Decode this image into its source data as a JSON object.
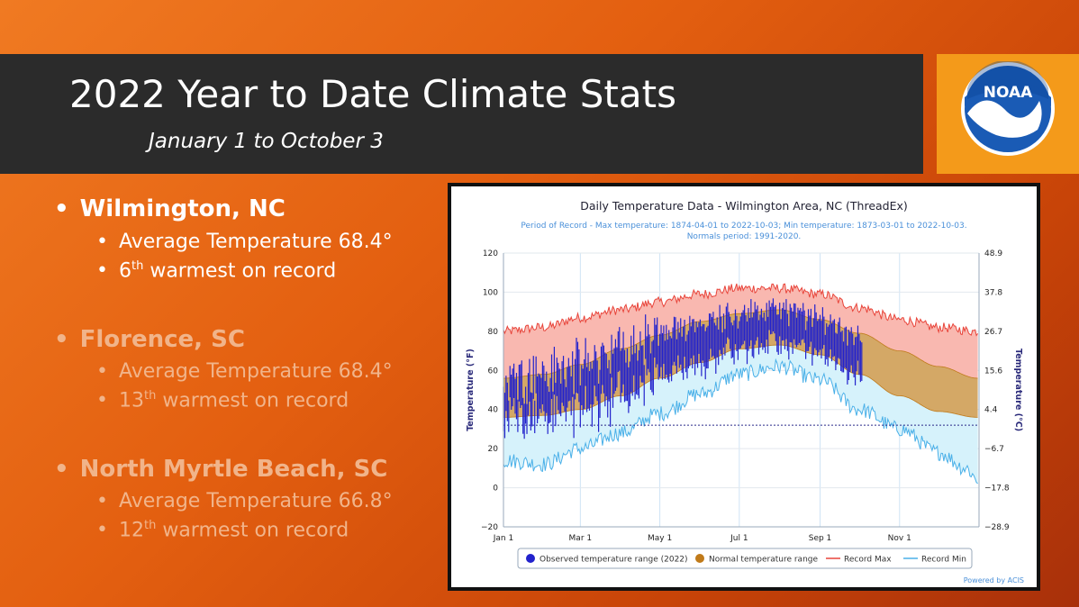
{
  "title": "2022 Year to Date Climate Stats",
  "subtitle": "January 1 to October 3",
  "logo_text": "NOAA",
  "cities": [
    {
      "name": "Wilmington, NC",
      "highlight": true,
      "avg_label": "Average Temperature 68.4°",
      "rank_num": "6",
      "rank_sup": "th",
      "rank_text": " warmest on record"
    },
    {
      "name": "Florence, SC",
      "highlight": false,
      "avg_label": "Average Temperature 68.4°",
      "rank_num": "13",
      "rank_sup": "th",
      "rank_text": " warmest on record"
    },
    {
      "name": "North Myrtle Beach, SC",
      "highlight": false,
      "avg_label": "Average Temperature 66.8°",
      "rank_num": "12",
      "rank_sup": "th",
      "rank_text": " warmest on record"
    }
  ],
  "chart_data": {
    "type": "area",
    "title": "Daily Temperature Data - Wilmington Area, NC (ThreadEx)",
    "subtitle_line1": "Period of Record - Max temperature: 1874-04-01 to 2022-10-03; Min temperature: 1873-03-01 to 2022-10-03.",
    "subtitle_line2": "Normals period: 1991-2020.",
    "ylabel_left": "Temperature (°F)",
    "ylabel_right": "Temperature (°C)",
    "ylim": [
      -20,
      120
    ],
    "yticks_left": [
      "120",
      "100",
      "80",
      "60",
      "40",
      "20",
      "0",
      "−20"
    ],
    "yticks_right": [
      "48.9",
      "37.8",
      "26.7",
      "15.6",
      "4.4",
      "−6.7",
      "−17.8",
      "−28.9"
    ],
    "xticks": [
      "Jan 1",
      "Mar 1",
      "May 1",
      "Jul 1",
      "Sep 1",
      "Nov 1"
    ],
    "xtick_days": [
      0,
      59,
      120,
      181,
      243,
      304
    ],
    "freezing_line_f": 32,
    "legend": [
      "Observed temperature range (2022)",
      "Normal temperature range",
      "Record Max",
      "Record Min"
    ],
    "credit": "Powered by ACIS",
    "colors": {
      "observed": "#2222cc",
      "normal_fill": "#d4a866",
      "normal_line": "#c07a1a",
      "record_max": "#e8443a",
      "record_min": "#4ab0e8",
      "max_fill": "#f9b8b0",
      "min_fill": "#d6f2fb"
    },
    "normal_max_anchors": [
      [
        0,
        56
      ],
      [
        31,
        58
      ],
      [
        59,
        63
      ],
      [
        90,
        71
      ],
      [
        120,
        78
      ],
      [
        151,
        85
      ],
      [
        181,
        89
      ],
      [
        212,
        91
      ],
      [
        243,
        86
      ],
      [
        273,
        79
      ],
      [
        304,
        70
      ],
      [
        334,
        62
      ],
      [
        364,
        56
      ]
    ],
    "normal_min_anchors": [
      [
        0,
        36
      ],
      [
        31,
        37
      ],
      [
        59,
        40
      ],
      [
        90,
        47
      ],
      [
        120,
        56
      ],
      [
        151,
        64
      ],
      [
        181,
        71
      ],
      [
        212,
        73
      ],
      [
        243,
        68
      ],
      [
        273,
        58
      ],
      [
        304,
        47
      ],
      [
        334,
        39
      ],
      [
        364,
        36
      ]
    ],
    "record_max_anchors": [
      [
        0,
        80
      ],
      [
        31,
        82
      ],
      [
        59,
        87
      ],
      [
        90,
        91
      ],
      [
        120,
        95
      ],
      [
        151,
        99
      ],
      [
        181,
        102
      ],
      [
        212,
        102
      ],
      [
        243,
        99
      ],
      [
        273,
        92
      ],
      [
        304,
        86
      ],
      [
        334,
        82
      ],
      [
        364,
        80
      ]
    ],
    "record_min_anchors": [
      [
        0,
        14
      ],
      [
        31,
        12
      ],
      [
        59,
        20
      ],
      [
        90,
        28
      ],
      [
        120,
        38
      ],
      [
        151,
        48
      ],
      [
        181,
        58
      ],
      [
        212,
        62
      ],
      [
        243,
        55
      ],
      [
        273,
        40
      ],
      [
        304,
        30
      ],
      [
        334,
        18
      ],
      [
        355,
        10
      ],
      [
        364,
        4
      ]
    ],
    "observed_end_day": 275
  }
}
